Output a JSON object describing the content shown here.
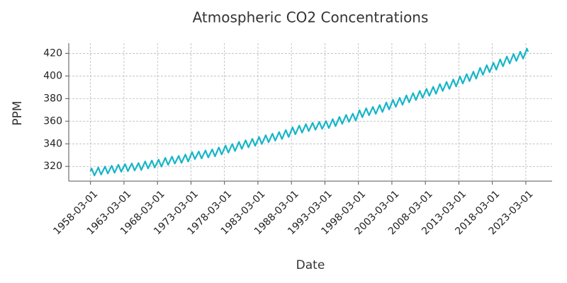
{
  "chart_data": {
    "type": "line",
    "title": "Atmospheric CO2 Concentrations",
    "xlabel": "Date",
    "ylabel": "PPM",
    "color": "#17b5c8",
    "grid": true,
    "xlim": [
      "1954-12-01",
      "2027-02-01"
    ],
    "ylim": [
      307,
      429
    ],
    "xticks": [
      "1958-03-01",
      "1963-03-01",
      "1968-03-01",
      "1973-03-01",
      "1978-03-01",
      "1983-03-01",
      "1988-03-01",
      "1993-03-01",
      "1998-03-01",
      "2003-03-01",
      "2008-03-01",
      "2013-03-01",
      "2018-03-01",
      "2023-03-01"
    ],
    "yticks": [
      320,
      340,
      360,
      380,
      400,
      420
    ],
    "x": [
      "1958-03-01",
      "1958-05-01",
      "1958-10-01",
      "1959-05-01",
      "1959-10-01",
      "1960-05-01",
      "1960-10-01",
      "1961-05-01",
      "1961-10-01",
      "1962-05-01",
      "1962-10-01",
      "1963-05-01",
      "1963-10-01",
      "1964-05-01",
      "1964-10-01",
      "1965-05-01",
      "1965-10-01",
      "1966-05-01",
      "1966-10-01",
      "1967-05-01",
      "1967-10-01",
      "1968-05-01",
      "1968-10-01",
      "1969-05-01",
      "1969-10-01",
      "1970-05-01",
      "1970-10-01",
      "1971-05-01",
      "1971-10-01",
      "1972-05-01",
      "1972-10-01",
      "1973-05-01",
      "1973-10-01",
      "1974-05-01",
      "1974-10-01",
      "1975-05-01",
      "1975-10-01",
      "1976-05-01",
      "1976-10-01",
      "1977-05-01",
      "1977-10-01",
      "1978-05-01",
      "1978-10-01",
      "1979-05-01",
      "1979-10-01",
      "1980-05-01",
      "1980-10-01",
      "1981-05-01",
      "1981-10-01",
      "1982-05-01",
      "1982-10-01",
      "1983-05-01",
      "1983-10-01",
      "1984-05-01",
      "1984-10-01",
      "1985-05-01",
      "1985-10-01",
      "1986-05-01",
      "1986-10-01",
      "1987-05-01",
      "1987-10-01",
      "1988-05-01",
      "1988-10-01",
      "1989-05-01",
      "1989-10-01",
      "1990-05-01",
      "1990-10-01",
      "1991-05-01",
      "1991-10-01",
      "1992-05-01",
      "1992-10-01",
      "1993-05-01",
      "1993-10-01",
      "1994-05-01",
      "1994-10-01",
      "1995-05-01",
      "1995-10-01",
      "1996-05-01",
      "1996-10-01",
      "1997-05-01",
      "1997-10-01",
      "1998-05-01",
      "1998-10-01",
      "1999-05-01",
      "1999-10-01",
      "2000-05-01",
      "2000-10-01",
      "2001-05-01",
      "2001-10-01",
      "2002-05-01",
      "2002-10-01",
      "2003-05-01",
      "2003-10-01",
      "2004-05-01",
      "2004-10-01",
      "2005-05-01",
      "2005-10-01",
      "2006-05-01",
      "2006-10-01",
      "2007-05-01",
      "2007-10-01",
      "2008-05-01",
      "2008-10-01",
      "2009-05-01",
      "2009-10-01",
      "2010-05-01",
      "2010-10-01",
      "2011-05-01",
      "2011-10-01",
      "2012-05-01",
      "2012-10-01",
      "2013-05-01",
      "2013-10-01",
      "2014-05-01",
      "2014-10-01",
      "2015-05-01",
      "2015-10-01",
      "2016-05-01",
      "2016-10-01",
      "2017-05-01",
      "2017-10-01",
      "2018-05-01",
      "2018-10-01",
      "2019-05-01",
      "2019-10-01",
      "2020-05-01",
      "2020-10-01",
      "2021-05-01",
      "2021-10-01",
      "2022-05-01",
      "2022-10-01",
      "2023-05-01",
      "2023-07-01"
    ],
    "values": [
      315.7,
      318.2,
      312.0,
      319.0,
      312.8,
      319.9,
      313.7,
      320.6,
      314.4,
      321.5,
      315.3,
      322.0,
      315.8,
      322.6,
      316.4,
      323.0,
      316.8,
      324.4,
      318.2,
      325.2,
      319.0,
      326.0,
      319.8,
      327.6,
      321.4,
      328.7,
      322.5,
      329.3,
      323.1,
      330.5,
      324.3,
      332.7,
      326.5,
      333.2,
      327.0,
      334.1,
      327.9,
      335.1,
      328.9,
      336.8,
      330.6,
      338.4,
      332.2,
      339.8,
      333.6,
      341.7,
      335.5,
      343.1,
      336.9,
      344.4,
      338.2,
      346.0,
      339.8,
      347.6,
      341.4,
      349.0,
      342.8,
      350.4,
      344.2,
      352.2,
      346.0,
      354.6,
      348.4,
      356.1,
      349.9,
      357.4,
      351.2,
      358.6,
      352.4,
      359.4,
      353.2,
      360.1,
      353.9,
      361.8,
      355.6,
      363.8,
      357.6,
      365.6,
      359.4,
      366.7,
      360.5,
      369.7,
      363.5,
      371.4,
      365.2,
      372.7,
      366.5,
      374.3,
      368.1,
      376.5,
      370.3,
      378.9,
      372.7,
      380.7,
      374.5,
      382.8,
      376.6,
      384.9,
      378.7,
      386.8,
      380.6,
      388.6,
      382.4,
      390.4,
      384.2,
      392.9,
      386.7,
      394.7,
      388.5,
      396.9,
      390.7,
      399.5,
      393.3,
      401.6,
      395.4,
      403.8,
      397.6,
      407.2,
      401.0,
      409.5,
      403.3,
      411.7,
      405.5,
      414.7,
      408.5,
      417.2,
      411.0,
      419.4,
      413.2,
      421.5,
      415.3,
      424.1,
      421.5
    ]
  }
}
